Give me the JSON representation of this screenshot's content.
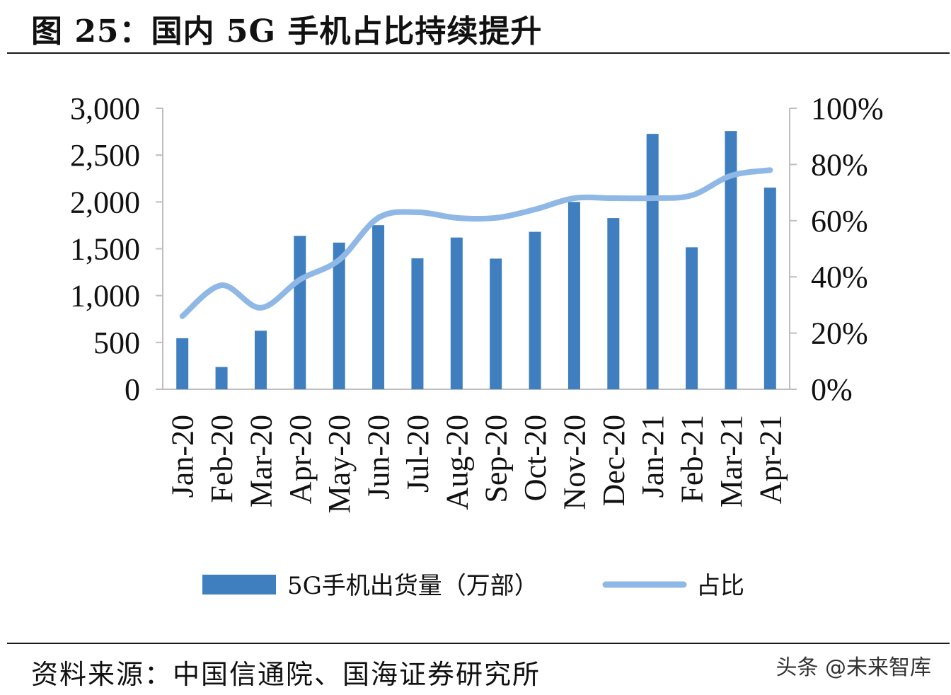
{
  "figure": {
    "title": "图 25：国内 5G 手机占比持续提升",
    "source": "资料来源：中国信通院、国海证券研究所",
    "watermark": "头条 @未来智库"
  },
  "chart_data": {
    "type": "bar",
    "categories": [
      "Jan-20",
      "Feb-20",
      "Mar-20",
      "Apr-20",
      "May-20",
      "Jun-20",
      "Jul-20",
      "Aug-20",
      "Sep-20",
      "Oct-20",
      "Nov-20",
      "Dec-20",
      "Jan-21",
      "Feb-21",
      "Mar-21",
      "Apr-21"
    ],
    "series": [
      {
        "name": "5G手机出货量（万部）",
        "type": "bar",
        "axis": "left",
        "color": "#3f7fbf",
        "values": [
          545,
          238,
          625,
          1638,
          1566,
          1752,
          1398,
          1620,
          1395,
          1681,
          2000,
          1828,
          2727,
          1516,
          2757,
          2153
        ]
      },
      {
        "name": "占比",
        "type": "line",
        "axis": "right",
        "color": "#8fb8e6",
        "values": [
          0.26,
          0.37,
          0.29,
          0.39,
          0.46,
          0.61,
          0.63,
          0.61,
          0.61,
          0.64,
          0.68,
          0.68,
          0.68,
          0.69,
          0.76,
          0.78
        ]
      }
    ],
    "y_left": {
      "ylim": [
        0,
        3000
      ],
      "ticks": [
        0,
        500,
        1000,
        1500,
        2000,
        2500,
        3000
      ],
      "tick_labels": [
        "0",
        "500",
        "1,000",
        "1,500",
        "2,000",
        "2,500",
        "3,000"
      ]
    },
    "y_right": {
      "ylim": [
        0,
        1
      ],
      "ticks": [
        0,
        0.2,
        0.4,
        0.6,
        0.8,
        1.0
      ],
      "tick_labels": [
        "0%",
        "20%",
        "40%",
        "60%",
        "80%",
        "100%"
      ]
    },
    "legend_position": "bottom",
    "grid": false
  }
}
